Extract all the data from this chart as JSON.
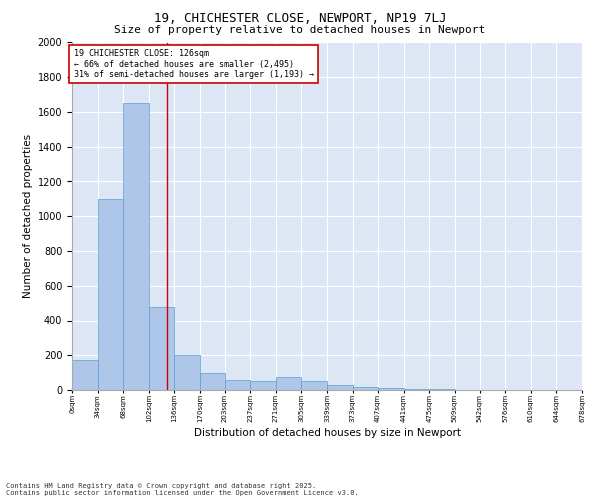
{
  "title": "19, CHICHESTER CLOSE, NEWPORT, NP19 7LJ",
  "subtitle": "Size of property relative to detached houses in Newport",
  "xlabel": "Distribution of detached houses by size in Newport",
  "ylabel": "Number of detached properties",
  "footnote1": "Contains HM Land Registry data © Crown copyright and database right 2025.",
  "footnote2": "Contains public sector information licensed under the Open Government Licence v3.0.",
  "annotation_line1": "19 CHICHESTER CLOSE: 126sqm",
  "annotation_line2": "← 66% of detached houses are smaller (2,495)",
  "annotation_line3": "31% of semi-detached houses are larger (1,193) →",
  "property_size": 126,
  "bin_edges": [
    0,
    34,
    68,
    102,
    136,
    170,
    203,
    237,
    271,
    305,
    339,
    373,
    407,
    441,
    475,
    509,
    542,
    576,
    610,
    644,
    678
  ],
  "bar_heights": [
    175,
    1100,
    1650,
    480,
    200,
    100,
    60,
    50,
    75,
    50,
    30,
    20,
    10,
    5,
    3,
    2,
    2,
    1,
    1,
    1
  ],
  "bar_color": "#aec6e8",
  "bar_edge_color": "#5a9fd4",
  "vline_color": "#cc0000",
  "annotation_box_color": "#cc0000",
  "background_color": "#dce6f5",
  "ylim": [
    0,
    2000
  ],
  "yticks": [
    0,
    200,
    400,
    600,
    800,
    1000,
    1200,
    1400,
    1600,
    1800,
    2000
  ],
  "title_fontsize": 9,
  "subtitle_fontsize": 8,
  "ylabel_fontsize": 7.5,
  "xlabel_fontsize": 7.5,
  "ytick_fontsize": 7,
  "xtick_fontsize": 5,
  "annotation_fontsize": 6,
  "footnote_fontsize": 5
}
